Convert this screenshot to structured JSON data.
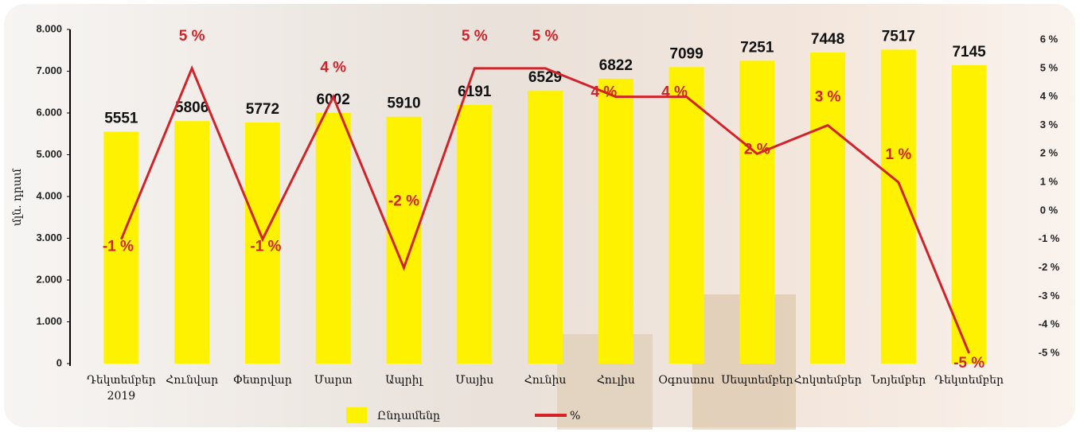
{
  "chart_data": {
    "type": "bar-line",
    "y_label": "մլն. դրամ",
    "categories": [
      "Դեկտեմբեր 2019",
      "Հունվար",
      "Փետրվար",
      "Մարտ",
      "Ապրիլ",
      "Մայիս",
      "Հունիս",
      "Հուլիս",
      "Օգոստոս",
      "Սեպտեմբեր",
      "Հոկտեմբեր",
      "Նոյեմբեր",
      "Դեկտեմբեր"
    ],
    "series": [
      {
        "name": "Ընդամենը",
        "type": "bar",
        "color": "#fff200",
        "values": [
          5551,
          5806,
          5772,
          6002,
          5910,
          6191,
          6529,
          6822,
          7099,
          7251,
          7448,
          7517,
          7145
        ]
      },
      {
        "name": "%",
        "type": "line",
        "axis": "y2",
        "color": "#d2232a",
        "values": [
          -1,
          5,
          -1,
          4,
          -2,
          5,
          5,
          4,
          4,
          2,
          3,
          1,
          -5
        ],
        "value_labels": [
          "-1 %",
          "5 %",
          "-1 %",
          "4 %",
          "-2 %",
          "5 %",
          "5 %",
          "4 %",
          "4 %",
          "2 %",
          "3 %",
          "1 %",
          "-5 %"
        ]
      }
    ],
    "ylim": [
      0,
      8000
    ],
    "yticks": [
      0,
      {
        "value": 1000,
        "label": "1.000"
      },
      {
        "value": 2000,
        "label": "2.000"
      },
      {
        "value": 3000,
        "label": "3.000"
      },
      {
        "value": 4000,
        "label": "4.000"
      },
      {
        "value": 5000,
        "label": "5.000"
      },
      {
        "value": 6000,
        "label": "6.000"
      },
      {
        "value": 7000,
        "label": "7.000"
      },
      {
        "value": 8000,
        "label": "8.000"
      }
    ],
    "y2lim": [
      -5,
      6
    ],
    "y2ticks": [
      {
        "value": -5,
        "label": "-5 %"
      },
      {
        "value": -4,
        "label": "-4 %"
      },
      {
        "value": -3,
        "label": "-3 %"
      },
      {
        "value": -2,
        "label": "-2 %"
      },
      {
        "value": -1,
        "label": "-1 %"
      },
      {
        "value": 0,
        "label": "0 %"
      },
      {
        "value": 1,
        "label": "1 %"
      },
      {
        "value": 2,
        "label": "2 %"
      },
      {
        "value": 3,
        "label": "3 %"
      },
      {
        "value": 4,
        "label": "4 %"
      },
      {
        "value": 5,
        "label": "5 %"
      },
      {
        "value": 6,
        "label": "6 %"
      }
    ],
    "legend": "bottom"
  }
}
